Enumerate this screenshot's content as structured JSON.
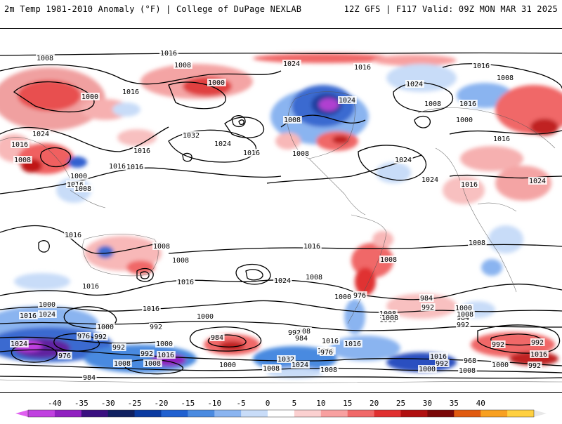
{
  "header": {
    "title_left": "2m Temp 1981-2010 Anomaly (°F) | College of DuPage NEXLAB",
    "title_right": "12Z GFS | F117 Valid: 09Z MON MAR 31 2025"
  },
  "colorbar": {
    "ticks": [
      "-40",
      "-35",
      "-30",
      "-25",
      "-20",
      "-15",
      "-10",
      "-5",
      "0",
      "5",
      "10",
      "15",
      "20",
      "25",
      "30",
      "35",
      "40"
    ],
    "colors": [
      "#c040e0",
      "#9020c0",
      "#3a1080",
      "#102060",
      "#0a3aa0",
      "#2060d0",
      "#4a8ae0",
      "#8ab4f0",
      "#c8dcf8",
      "#ffffff",
      "#fbd0d0",
      "#f8a0a0",
      "#f06868",
      "#e03030",
      "#b01010",
      "#7a0808",
      "#e05a10",
      "#f8a020",
      "#ffd040"
    ]
  },
  "pressure_labels": [
    {
      "text": "1008"
    },
    {
      "text": "1016"
    },
    {
      "text": "1008"
    },
    {
      "text": "1024"
    },
    {
      "text": "1016"
    },
    {
      "text": "1000"
    },
    {
      "text": "1016"
    },
    {
      "text": "1000"
    },
    {
      "text": "1024"
    },
    {
      "text": "1016"
    },
    {
      "text": "1008"
    },
    {
      "text": "1024"
    },
    {
      "text": "1016"
    },
    {
      "text": "1008"
    },
    {
      "text": "1000"
    },
    {
      "text": "1008"
    },
    {
      "text": "1032"
    },
    {
      "text": "1024"
    },
    {
      "text": "1016"
    },
    {
      "text": "1016"
    },
    {
      "text": "1008"
    },
    {
      "text": "1016"
    },
    {
      "text": "1024"
    },
    {
      "text": "1016"
    },
    {
      "text": "1024"
    },
    {
      "text": "1016"
    },
    {
      "text": "1008"
    },
    {
      "text": "1016"
    },
    {
      "text": "1024"
    },
    {
      "text": "1016"
    },
    {
      "text": "1024"
    },
    {
      "text": "1016"
    },
    {
      "text": "1000"
    },
    {
      "text": "1008"
    },
    {
      "text": "1016"
    },
    {
      "text": "1008"
    },
    {
      "text": "1016"
    },
    {
      "text": "1016"
    },
    {
      "text": "1008"
    },
    {
      "text": "1008"
    },
    {
      "text": "1008"
    },
    {
      "text": "1016"
    },
    {
      "text": "1024"
    },
    {
      "text": "1008"
    },
    {
      "text": "1016"
    },
    {
      "text": "1000"
    },
    {
      "text": "1016"
    },
    {
      "text": "1024"
    },
    {
      "text": "1016"
    },
    {
      "text": "992"
    },
    {
      "text": "984"
    },
    {
      "text": "1000"
    },
    {
      "text": "976"
    },
    {
      "text": "992"
    },
    {
      "text": "1008"
    },
    {
      "text": "1008"
    },
    {
      "text": "1000"
    },
    {
      "text": "1024"
    },
    {
      "text": "976"
    },
    {
      "text": "1000"
    },
    {
      "text": "984"
    },
    {
      "text": "992"
    },
    {
      "text": "992"
    },
    {
      "text": "1000"
    },
    {
      "text": "1008"
    },
    {
      "text": "976"
    },
    {
      "text": "984"
    },
    {
      "text": "992"
    },
    {
      "text": "1000"
    },
    {
      "text": "1016"
    },
    {
      "text": "1008"
    },
    {
      "text": "992"
    },
    {
      "text": "1000"
    },
    {
      "text": "1016"
    },
    {
      "text": "1032"
    },
    {
      "text": "1024"
    },
    {
      "text": "1008"
    },
    {
      "text": "1008"
    },
    {
      "text": "1016"
    },
    {
      "text": "1008"
    },
    {
      "text": "1016"
    },
    {
      "text": "992"
    },
    {
      "text": "968"
    },
    {
      "text": "1000"
    },
    {
      "text": "1016"
    },
    {
      "text": "1008"
    },
    {
      "text": "992"
    },
    {
      "text": "992"
    },
    {
      "text": "1016"
    },
    {
      "text": "1008"
    },
    {
      "text": "1016"
    },
    {
      "text": "984"
    },
    {
      "text": "1008"
    },
    {
      "text": "1000"
    },
    {
      "text": "992"
    },
    {
      "text": "976"
    },
    {
      "text": "984"
    },
    {
      "text": "992"
    }
  ]
}
